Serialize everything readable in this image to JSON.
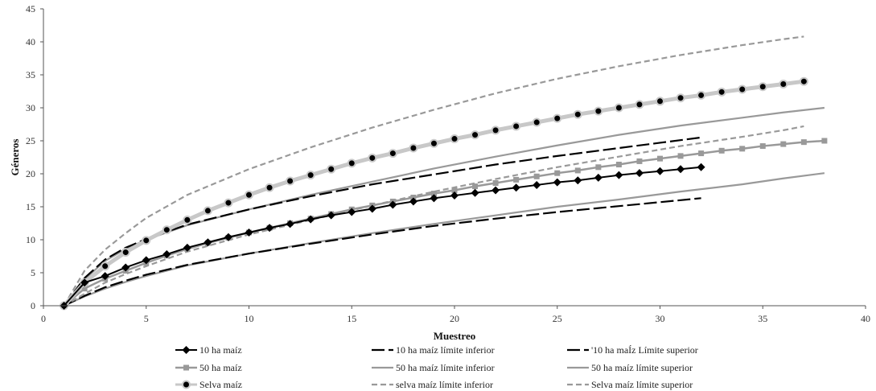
{
  "chart_data": {
    "type": "line",
    "xlabel": "Muestreo",
    "ylabel": "Géneros",
    "xlim": [
      0,
      40
    ],
    "ylim": [
      0,
      45
    ],
    "xticks": [
      0,
      5,
      10,
      15,
      20,
      25,
      30,
      35,
      40
    ],
    "yticks": [
      0,
      5,
      10,
      15,
      20,
      25,
      30,
      35,
      40,
      45
    ],
    "grid": false,
    "legend_position": "bottom",
    "series": [
      {
        "name": "10 ha maíz",
        "color": "#000000",
        "style": "solid-diamond",
        "points": [
          [
            1,
            0
          ],
          [
            2,
            3.5
          ],
          [
            3,
            4.5
          ],
          [
            4,
            5.8
          ],
          [
            5,
            6.9
          ],
          [
            6,
            7.8
          ],
          [
            7,
            8.8
          ],
          [
            8,
            9.6
          ],
          [
            9,
            10.4
          ],
          [
            10,
            11.1
          ],
          [
            11,
            11.8
          ],
          [
            12,
            12.4
          ],
          [
            13,
            13.1
          ],
          [
            14,
            13.7
          ],
          [
            15,
            14.2
          ],
          [
            16,
            14.7
          ],
          [
            17,
            15.3
          ],
          [
            18,
            15.8
          ],
          [
            19,
            16.3
          ],
          [
            20,
            16.7
          ],
          [
            21,
            17.1
          ],
          [
            22,
            17.5
          ],
          [
            23,
            17.9
          ],
          [
            24,
            18.3
          ],
          [
            25,
            18.7
          ],
          [
            26,
            19.0
          ],
          [
            27,
            19.4
          ],
          [
            28,
            19.8
          ],
          [
            29,
            20.1
          ],
          [
            30,
            20.4
          ],
          [
            31,
            20.7
          ],
          [
            32,
            21.0
          ]
        ]
      },
      {
        "name": "10 ha maíz límite inferior",
        "color": "#000000",
        "style": "long-dash",
        "points": [
          [
            1,
            0
          ],
          [
            2,
            1.5
          ],
          [
            3,
            2.8
          ],
          [
            4,
            3.8
          ],
          [
            5,
            4.7
          ],
          [
            7,
            6.2
          ],
          [
            10,
            7.9
          ],
          [
            13,
            9.4
          ],
          [
            16,
            10.8
          ],
          [
            19,
            12.1
          ],
          [
            22,
            13.2
          ],
          [
            25,
            14.2
          ],
          [
            28,
            15.1
          ],
          [
            30,
            15.7
          ],
          [
            32,
            16.3
          ]
        ]
      },
      {
        "name": "'10 ha maÍz Límite superior",
        "color": "#000000",
        "style": "long-dash",
        "points": [
          [
            1,
            0
          ],
          [
            2,
            4.2
          ],
          [
            3,
            7.0
          ],
          [
            4,
            8.8
          ],
          [
            5,
            10.1
          ],
          [
            7,
            12.3
          ],
          [
            10,
            14.6
          ],
          [
            13,
            16.6
          ],
          [
            16,
            18.4
          ],
          [
            19,
            19.9
          ],
          [
            22,
            21.4
          ],
          [
            25,
            22.7
          ],
          [
            28,
            23.9
          ],
          [
            30,
            24.7
          ],
          [
            32,
            25.5
          ]
        ]
      },
      {
        "name": "50 ha  maíz",
        "color": "#999999",
        "style": "solid-square",
        "points": [
          [
            1,
            0
          ],
          [
            2,
            2.6
          ],
          [
            3,
            4.1
          ],
          [
            4,
            5.3
          ],
          [
            5,
            6.5
          ],
          [
            6,
            7.6
          ],
          [
            7,
            8.6
          ],
          [
            8,
            9.5
          ],
          [
            9,
            10.3
          ],
          [
            10,
            11.1
          ],
          [
            11,
            11.8
          ],
          [
            12,
            12.5
          ],
          [
            13,
            13.2
          ],
          [
            14,
            13.9
          ],
          [
            15,
            14.6
          ],
          [
            16,
            15.2
          ],
          [
            17,
            15.8
          ],
          [
            18,
            16.4
          ],
          [
            19,
            17.0
          ],
          [
            20,
            17.5
          ],
          [
            21,
            18.1
          ],
          [
            22,
            18.6
          ],
          [
            23,
            19.1
          ],
          [
            24,
            19.6
          ],
          [
            25,
            20.1
          ],
          [
            26,
            20.5
          ],
          [
            27,
            21.0
          ],
          [
            28,
            21.4
          ],
          [
            29,
            21.9
          ],
          [
            30,
            22.3
          ],
          [
            31,
            22.7
          ],
          [
            32,
            23.1
          ],
          [
            33,
            23.5
          ],
          [
            34,
            23.8
          ],
          [
            35,
            24.2
          ],
          [
            36,
            24.5
          ],
          [
            37,
            24.8
          ],
          [
            38,
            25.0
          ]
        ]
      },
      {
        "name": "50 ha maíz límite inferior",
        "color": "#999999",
        "style": "solid",
        "points": [
          [
            1,
            0
          ],
          [
            2,
            1.4
          ],
          [
            3,
            2.6
          ],
          [
            4,
            3.6
          ],
          [
            5,
            4.5
          ],
          [
            7,
            6.1
          ],
          [
            10,
            7.9
          ],
          [
            13,
            9.5
          ],
          [
            16,
            11.0
          ],
          [
            19,
            12.4
          ],
          [
            22,
            13.7
          ],
          [
            25,
            15.0
          ],
          [
            28,
            16.1
          ],
          [
            31,
            17.3
          ],
          [
            34,
            18.4
          ],
          [
            36,
            19.3
          ],
          [
            38,
            20.1
          ]
        ]
      },
      {
        "name": "50 ha maíz límite superior",
        "color": "#999999",
        "style": "solid",
        "points": [
          [
            1,
            0
          ],
          [
            2,
            4.0
          ],
          [
            3,
            6.8
          ],
          [
            4,
            8.6
          ],
          [
            5,
            10.0
          ],
          [
            7,
            12.2
          ],
          [
            10,
            14.6
          ],
          [
            13,
            16.8
          ],
          [
            16,
            18.8
          ],
          [
            19,
            20.8
          ],
          [
            22,
            22.6
          ],
          [
            25,
            24.3
          ],
          [
            28,
            25.9
          ],
          [
            31,
            27.3
          ],
          [
            34,
            28.5
          ],
          [
            36,
            29.3
          ],
          [
            38,
            30.0
          ]
        ]
      },
      {
        "name": "Selva maíz",
        "color": "#c8c8c8",
        "style": "solid-circle",
        "points": [
          [
            1,
            0
          ],
          [
            2,
            3.5
          ],
          [
            3,
            6.0
          ],
          [
            4,
            8.1
          ],
          [
            5,
            9.9
          ],
          [
            6,
            11.5
          ],
          [
            7,
            13.0
          ],
          [
            8,
            14.4
          ],
          [
            9,
            15.6
          ],
          [
            10,
            16.8
          ],
          [
            11,
            17.9
          ],
          [
            12,
            18.9
          ],
          [
            13,
            19.8
          ],
          [
            14,
            20.7
          ],
          [
            15,
            21.6
          ],
          [
            16,
            22.4
          ],
          [
            17,
            23.1
          ],
          [
            18,
            23.9
          ],
          [
            19,
            24.6
          ],
          [
            20,
            25.3
          ],
          [
            21,
            25.9
          ],
          [
            22,
            26.6
          ],
          [
            23,
            27.2
          ],
          [
            24,
            27.8
          ],
          [
            25,
            28.4
          ],
          [
            26,
            29.0
          ],
          [
            27,
            29.5
          ],
          [
            28,
            30.0
          ],
          [
            29,
            30.5
          ],
          [
            30,
            31.0
          ],
          [
            31,
            31.5
          ],
          [
            32,
            31.9
          ],
          [
            33,
            32.4
          ],
          [
            34,
            32.8
          ],
          [
            35,
            33.2
          ],
          [
            36,
            33.6
          ],
          [
            37,
            34.0
          ]
        ]
      },
      {
        "name": "selva maíz límite inferior",
        "color": "#999999",
        "style": "short-dash",
        "points": [
          [
            1,
            0
          ],
          [
            2,
            1.8
          ],
          [
            3,
            3.5
          ],
          [
            4,
            4.8
          ],
          [
            5,
            6.0
          ],
          [
            7,
            8.2
          ],
          [
            10,
            10.8
          ],
          [
            13,
            13.0
          ],
          [
            16,
            15.2
          ],
          [
            19,
            17.3
          ],
          [
            22,
            19.2
          ],
          [
            25,
            21.0
          ],
          [
            28,
            22.6
          ],
          [
            31,
            24.2
          ],
          [
            34,
            25.6
          ],
          [
            36,
            26.6
          ],
          [
            37,
            27.2
          ]
        ]
      },
      {
        "name": "Selva maíz límite superior",
        "color": "#999999",
        "style": "short-dash",
        "points": [
          [
            1,
            0
          ],
          [
            2,
            5.3
          ],
          [
            3,
            8.5
          ],
          [
            4,
            11.0
          ],
          [
            5,
            13.3
          ],
          [
            7,
            16.8
          ],
          [
            10,
            20.7
          ],
          [
            13,
            24.0
          ],
          [
            16,
            27.0
          ],
          [
            19,
            29.7
          ],
          [
            22,
            32.2
          ],
          [
            25,
            34.4
          ],
          [
            28,
            36.3
          ],
          [
            31,
            38.0
          ],
          [
            34,
            39.5
          ],
          [
            36,
            40.4
          ],
          [
            37,
            40.8
          ]
        ]
      }
    ]
  }
}
